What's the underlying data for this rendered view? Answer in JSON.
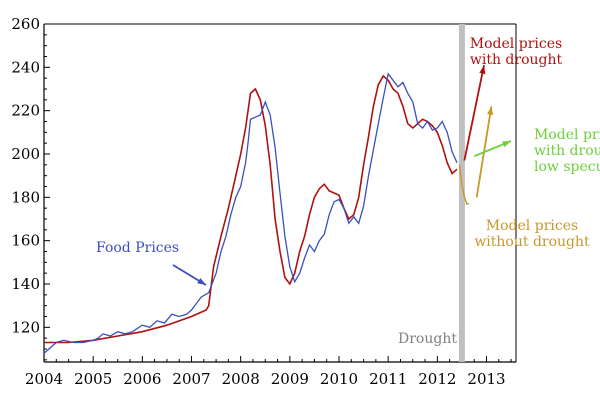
{
  "colors": {
    "food": "#3a4fc0",
    "model": "#b01010",
    "no_drought": "#c8962a",
    "low_spec": "#6ecf3a",
    "drought_bar": "#c0c0c0",
    "drought_text": "#808080"
  },
  "chart_data": {
    "type": "line",
    "xlim": [
      2004,
      2013.6
    ],
    "ylim": [
      104,
      260
    ],
    "x_ticks": [
      2004,
      2005,
      2006,
      2007,
      2008,
      2009,
      2010,
      2011,
      2012,
      2013
    ],
    "x_tick_labels": [
      "2004",
      "2005",
      "2006",
      "2007",
      "2008",
      "2009",
      "2010",
      "2011",
      "2012",
      "2013"
    ],
    "y_ticks": [
      120,
      140,
      160,
      180,
      200,
      220,
      240,
      260
    ],
    "y_tick_labels": [
      "120",
      "140",
      "160",
      "180",
      "200",
      "220",
      "240",
      "260"
    ],
    "drought": {
      "x": 2012.5,
      "label": "Drought"
    },
    "series": [
      {
        "name": "Food Prices",
        "points": [
          [
            2004.0,
            108
          ],
          [
            2004.1,
            110
          ],
          [
            2004.25,
            112
          ],
          [
            2004.4,
            114
          ],
          [
            2004.6,
            113
          ],
          [
            2004.8,
            113
          ],
          [
            2005.0,
            114
          ],
          [
            2005.1,
            115
          ],
          [
            2005.2,
            117
          ],
          [
            2005.35,
            116
          ],
          [
            2005.5,
            118
          ],
          [
            2005.65,
            117
          ],
          [
            2005.8,
            118
          ],
          [
            2006.0,
            121
          ],
          [
            2006.15,
            120
          ],
          [
            2006.3,
            123
          ],
          [
            2006.45,
            122
          ],
          [
            2006.6,
            126
          ],
          [
            2006.75,
            125
          ],
          [
            2006.9,
            126
          ],
          [
            2007.0,
            125
          ],
          [
            2007.15,
            127
          ],
          [
            2007.35,
            129
          ],
          [
            2007.5,
            133
          ],
          [
            2007.7,
            135
          ],
          [
            2007.85,
            134
          ],
          [
            2008.0,
            137
          ],
          [
            2008.15,
            140
          ],
          [
            2008.3,
            144
          ],
          [
            2008.5,
            153
          ],
          [
            2008.65,
            160
          ],
          [
            2008.8,
            168
          ],
          [
            2009.0,
            176
          ],
          [
            2009.2,
            186
          ],
          [
            2009.4,
            198
          ],
          [
            2009.6,
            209
          ],
          [
            2009.8,
            217
          ],
          [
            2010.0,
            218
          ],
          [
            2010.15,
            219
          ],
          [
            2010.3,
            224
          ],
          [
            2010.45,
            220
          ],
          [
            2010.6,
            208
          ],
          [
            2010.75,
            190
          ],
          [
            2010.9,
            165
          ],
          [
            2011.1,
            152
          ],
          [
            2011.3,
            146
          ],
          [
            2011.45,
            140
          ],
          [
            2011.6,
            145
          ],
          [
            2011.75,
            154
          ],
          [
            2011.9,
            160
          ],
          [
            2012.05,
            158
          ],
          [
            2012.2,
            153
          ]
        ]
      },
      {
        "name": "Model",
        "points": []
      }
    ],
    "note": ""
  },
  "labels": {
    "food_prices": "Food Prices",
    "with_drought": [
      "Model prices",
      "with drought"
    ],
    "low_spec": [
      "Model prices",
      "with drought,",
      "low speculation"
    ],
    "without_drought": [
      "Model prices",
      "without drought"
    ]
  }
}
